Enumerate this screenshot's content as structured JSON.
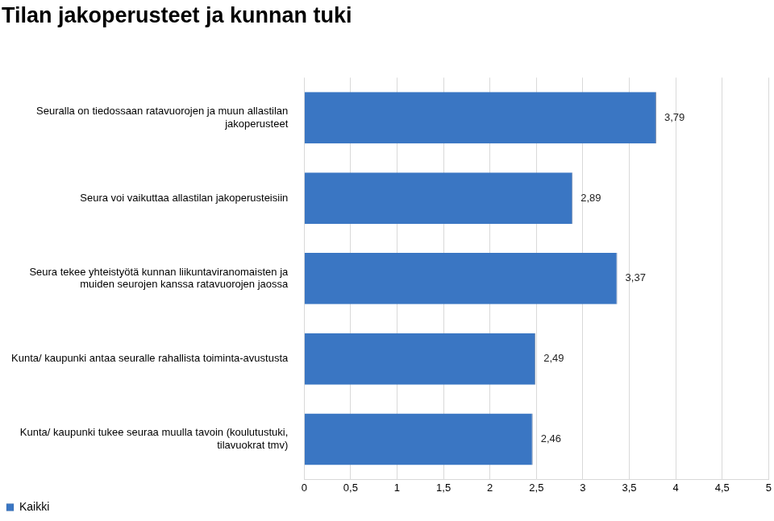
{
  "chart_data": {
    "type": "bar",
    "orientation": "horizontal",
    "title": "Tilan jakoperusteet ja kunnan tuki",
    "categories": [
      "Seuralla on tiedossaan ratavuorojen ja muun allastilan jakoperusteet",
      "Seura voi vaikuttaa allastilan jakoperusteisiin",
      "Seura tekee yhteistyötä kunnan liikuntaviranomaisten ja muiden seurojen kanssa ratavuorojen jaossa",
      "Kunta/ kaupunki antaa seuralle rahallista toiminta-avustusta",
      "Kunta/ kaupunki tukee seuraa muulla tavoin (koulutustuki, tilavuokrat tmv)"
    ],
    "series": [
      {
        "name": "Kaikki",
        "color": "#3a76c3",
        "values": [
          3.79,
          2.89,
          3.37,
          2.49,
          2.46
        ],
        "value_labels": [
          "3,79",
          "2,89",
          "3,37",
          "2,49",
          "2,46"
        ]
      }
    ],
    "xlim": [
      0,
      5
    ],
    "xticks": [
      0,
      {
        "value": 0.5,
        "label": "0,5"
      },
      1,
      {
        "value": 1.5,
        "label": "1,5"
      },
      2,
      {
        "value": 2.5,
        "label": "2,5"
      },
      3,
      {
        "value": 3.5,
        "label": "3,5"
      },
      4,
      {
        "value": 4.5,
        "label": "4,5"
      },
      5
    ],
    "grid": true,
    "data_labels": true,
    "legend": "bottom-left"
  }
}
